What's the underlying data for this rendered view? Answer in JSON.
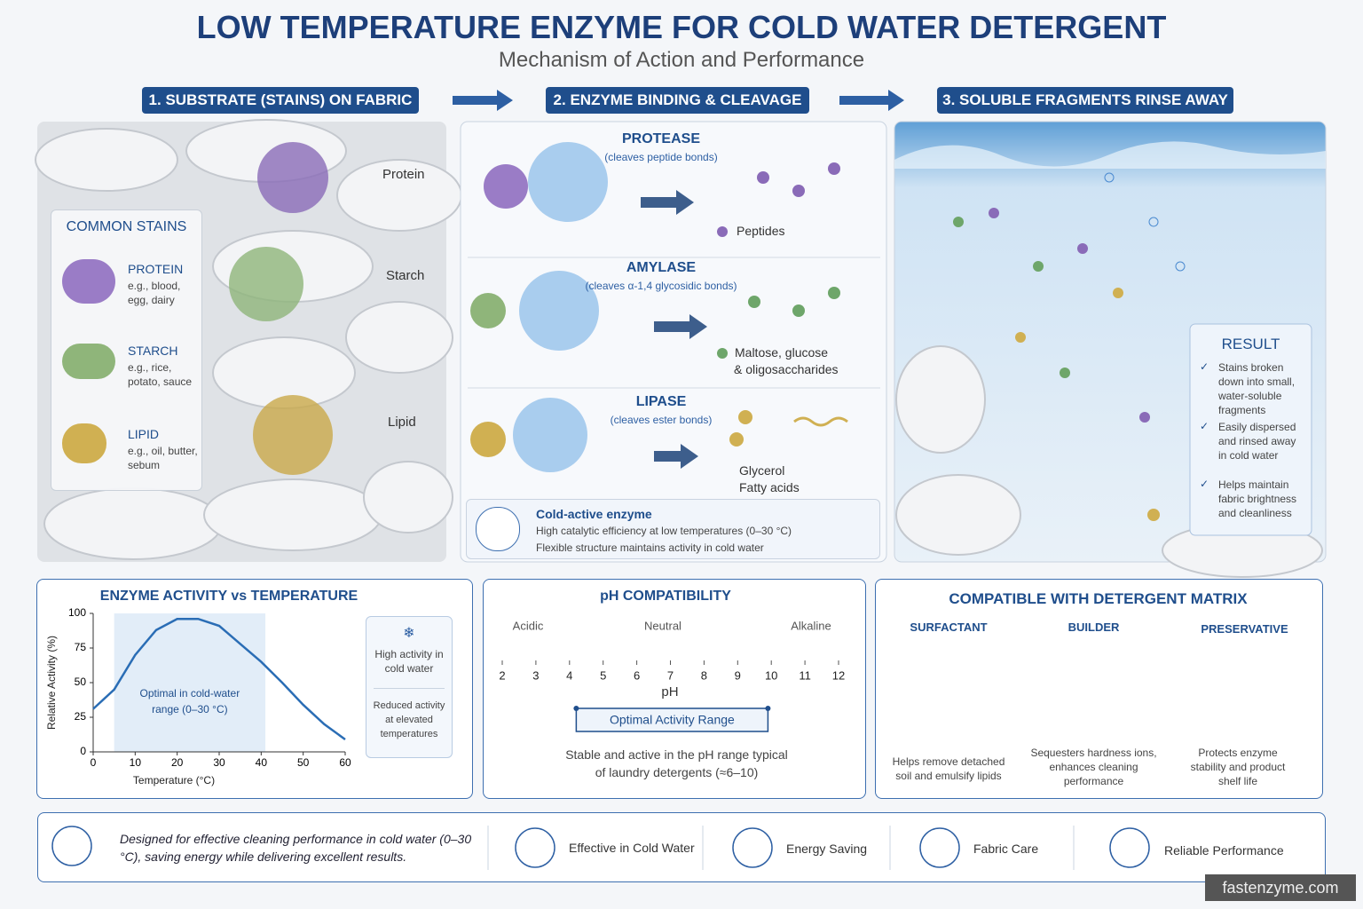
{
  "header": {
    "title": "LOW TEMPERATURE ENZYME FOR COLD WATER DETERGENT",
    "subtitle": "Mechanism of Action and Performance"
  },
  "steps": [
    "1. SUBSTRATE (STAINS) ON FABRIC",
    "2. ENZYME BINDING & CLEAVAGE",
    "3. SOLUBLE FRAGMENTS RINSE AWAY"
  ],
  "panel1": {
    "labels": [
      "Protein",
      "Starch",
      "Lipid"
    ],
    "common_stains": {
      "title": "COMMON STAINS",
      "items": [
        {
          "name": "PROTEIN",
          "examples": "e.g., blood, egg, dairy"
        },
        {
          "name": "STARCH",
          "examples": "e.g., rice, potato, sauce"
        },
        {
          "name": "LIPID",
          "examples": "e.g., oil, butter, sebum"
        }
      ]
    }
  },
  "panel2": {
    "enzymes": [
      {
        "name": "PROTEASE",
        "action": "(cleaves peptide bonds)",
        "products": [
          "Peptides"
        ]
      },
      {
        "name": "AMYLASE",
        "action": "(cleaves α-1,4 glycosidic bonds)",
        "products": [
          "Maltose, glucose",
          "& oligosaccharides"
        ]
      },
      {
        "name": "LIPASE",
        "action": "(cleaves ester bonds)",
        "products": [
          "Glycerol",
          "Fatty acids"
        ]
      }
    ],
    "cold_active": {
      "title": "Cold-active enzyme",
      "lines": [
        "High catalytic efficiency at low temperatures (0–30 °C)",
        "Flexible structure maintains activity in cold water"
      ]
    }
  },
  "panel3": {
    "result": {
      "title": "RESULT",
      "items": [
        "Stains broken down into small, water-soluble fragments",
        "Easily dispersed and rinsed away in cold water",
        "Helps maintain fabric brightness and cleanliness"
      ]
    }
  },
  "chart_data": {
    "type": "line",
    "title": "ENZYME ACTIVITY vs TEMPERATURE",
    "x_label": "Temperature (°C)",
    "y_label": "Relative Activity (%)",
    "x": [
      0,
      5,
      10,
      15,
      20,
      25,
      30,
      35,
      40,
      45,
      50,
      55,
      60
    ],
    "values": [
      31,
      45,
      70,
      88,
      96,
      96,
      91,
      78,
      65,
      50,
      34,
      20,
      9
    ],
    "color": "#2a6db5",
    "xlim": [
      0,
      60
    ],
    "xticks": [
      0,
      10,
      20,
      30,
      40,
      50,
      60
    ],
    "ylim": [
      0,
      100
    ],
    "yticks": [
      0,
      25,
      50,
      75,
      100
    ],
    "shaded_range": [
      5,
      41
    ],
    "annotation": "Optimal in cold-water range (0–30 °C)",
    "notes": [
      "High activity in cold water",
      "Reduced activity at elevated temperatures"
    ]
  },
  "ph": {
    "title": "pH COMPATIBILITY",
    "zones": [
      "Acidic",
      "Neutral",
      "Alkaline"
    ],
    "xlim": [
      2,
      12
    ],
    "xticks": [
      2,
      3,
      4,
      5,
      6,
      7,
      8,
      9,
      10,
      11,
      12
    ],
    "x_label": "pH",
    "optimal_label": "Optimal Activity Range",
    "optimal_range": [
      4.2,
      9.9
    ],
    "note": "Stable and active in the pH range typical of laundry detergents (≈6–10)"
  },
  "matrix": {
    "title": "COMPATIBLE WITH DETERGENT MATRIX",
    "items": [
      {
        "name": "SURFACTANT",
        "description": "Helps remove detached soil and emulsify lipids"
      },
      {
        "name": "BUILDER",
        "description": "Sequesters hardness ions, enhances cleaning performance"
      },
      {
        "name": "PRESERVATIVE",
        "description": "Protects enzyme stability and product shelf life"
      }
    ]
  },
  "footer": {
    "statement": "Designed for effective cleaning performance in cold water (0–30 °C), saving energy while delivering excellent results.",
    "features": [
      "Effective in Cold Water",
      "Energy Saving",
      "Fabric Care",
      "Reliable Performance"
    ],
    "watermark": "fastenzyme.com"
  }
}
